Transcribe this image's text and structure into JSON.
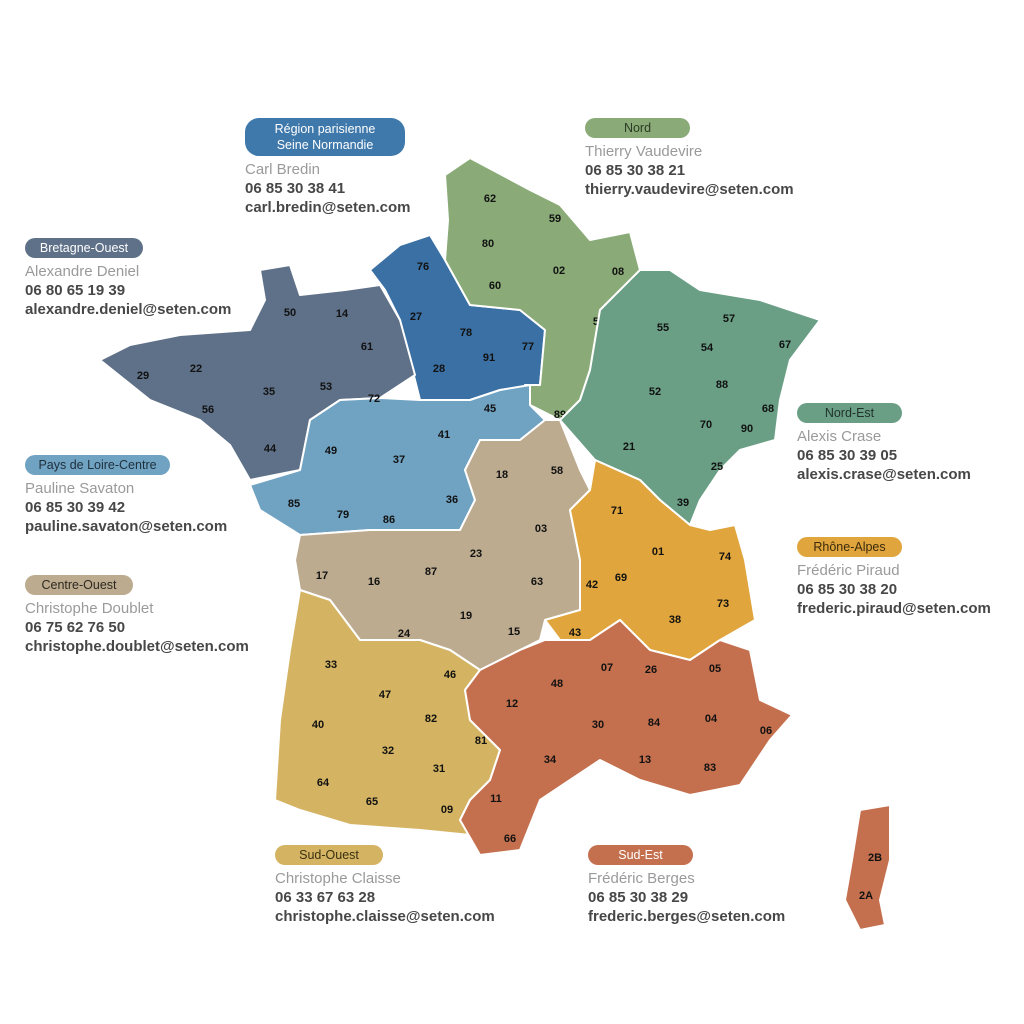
{
  "regions": [
    {
      "id": "rp",
      "label_lines": [
        "Région parisienne",
        "Seine Normandie"
      ],
      "contact": "Carl Bredin",
      "phone": "06 85 30 38 41",
      "email": "carl.bredin@seten.com",
      "color": "#3b70a4",
      "badge_color": "#3f78ab",
      "badge_text_color": "#ffffff",
      "departments": [
        "76",
        "27",
        "78",
        "91",
        "77",
        "28"
      ]
    },
    {
      "id": "nord",
      "label_lines": [
        "Nord"
      ],
      "contact": "Thierry Vaudevire",
      "phone": "06 85 30 38 21",
      "email": "thierry.vaudevire@seten.com",
      "color": "#8aab78",
      "badge_color": "#8aab78",
      "badge_text_color": "#2b3a25",
      "departments": [
        "62",
        "59",
        "80",
        "02",
        "08",
        "60",
        "51",
        "10",
        "89"
      ]
    },
    {
      "id": "bretagne",
      "label_lines": [
        "Bretagne-Ouest"
      ],
      "contact": "Alexandre Deniel",
      "phone": "06 80 65 19 39",
      "email": "alexandre.deniel@seten.com",
      "color": "#5f7188",
      "badge_color": "#5f7188",
      "badge_text_color": "#ffffff",
      "departments": [
        "50",
        "14",
        "61",
        "29",
        "22",
        "56",
        "35",
        "53",
        "44"
      ]
    },
    {
      "id": "loire",
      "label_lines": [
        "Pays de Loire-Centre"
      ],
      "contact": "Pauline Savaton",
      "phone": "06 85 30 39 42",
      "email": "pauline.savaton@seten.com",
      "color": "#70a2c2",
      "badge_color": "#70a2c2",
      "badge_text_color": "#1f2f3c",
      "departments": [
        "72",
        "45",
        "49",
        "41",
        "37",
        "85",
        "79",
        "86",
        "36"
      ]
    },
    {
      "id": "centre-ouest",
      "label_lines": [
        "Centre-Ouest"
      ],
      "contact": "Christophe Doublet",
      "phone": "06 75 62 76 50",
      "email": "christophe.doublet@seten.com",
      "color": "#bcab8f",
      "badge_color": "#bcab8f",
      "badge_text_color": "#2e2a22",
      "departments": [
        "18",
        "58",
        "03",
        "17",
        "16",
        "87",
        "23",
        "63",
        "24",
        "19",
        "15"
      ]
    },
    {
      "id": "nord-est",
      "label_lines": [
        "Nord-Est"
      ],
      "contact": "Alexis Crase",
      "phone": "06 85 30 39 05",
      "email": "alexis.crase@seten.com",
      "color": "#6a9f86",
      "badge_color": "#6a9f86",
      "badge_text_color": "#1f3129",
      "departments": [
        "55",
        "57",
        "67",
        "54",
        "88",
        "52",
        "68",
        "70",
        "90",
        "21",
        "25",
        "39"
      ]
    },
    {
      "id": "rhone",
      "label_lines": [
        "Rhône-Alpes"
      ],
      "contact": "Frédéric Piraud",
      "phone": "06 85 30 38 20",
      "email": "frederic.piraud@seten.com",
      "color": "#e0a53c",
      "badge_color": "#e0a53c",
      "badge_text_color": "#3a2a0c",
      "departments": [
        "71",
        "01",
        "74",
        "42",
        "69",
        "73",
        "38",
        "43"
      ]
    },
    {
      "id": "sud-ouest",
      "label_lines": [
        "Sud-Ouest"
      ],
      "contact": "Christophe Claisse",
      "phone": "06 33 67 63 28",
      "email": "christophe.claisse@seten.com",
      "color": "#d4b462",
      "badge_color": "#d4b462",
      "badge_text_color": "#3a3012",
      "departments": [
        "33",
        "47",
        "46",
        "40",
        "82",
        "81",
        "32",
        "31",
        "64",
        "65",
        "09"
      ]
    },
    {
      "id": "sud-est",
      "label_lines": [
        "Sud-Est"
      ],
      "contact": "Frédéric Berges",
      "phone": "06 85 30 38 29",
      "email": "frederic.berges@seten.com",
      "color": "#c4704e",
      "badge_color": "#c4704e",
      "badge_text_color": "#ffffff",
      "departments": [
        "48",
        "07",
        "26",
        "05",
        "12",
        "30",
        "84",
        "04",
        "06",
        "34",
        "13",
        "83",
        "11",
        "66",
        "2B",
        "2A"
      ]
    }
  ]
}
